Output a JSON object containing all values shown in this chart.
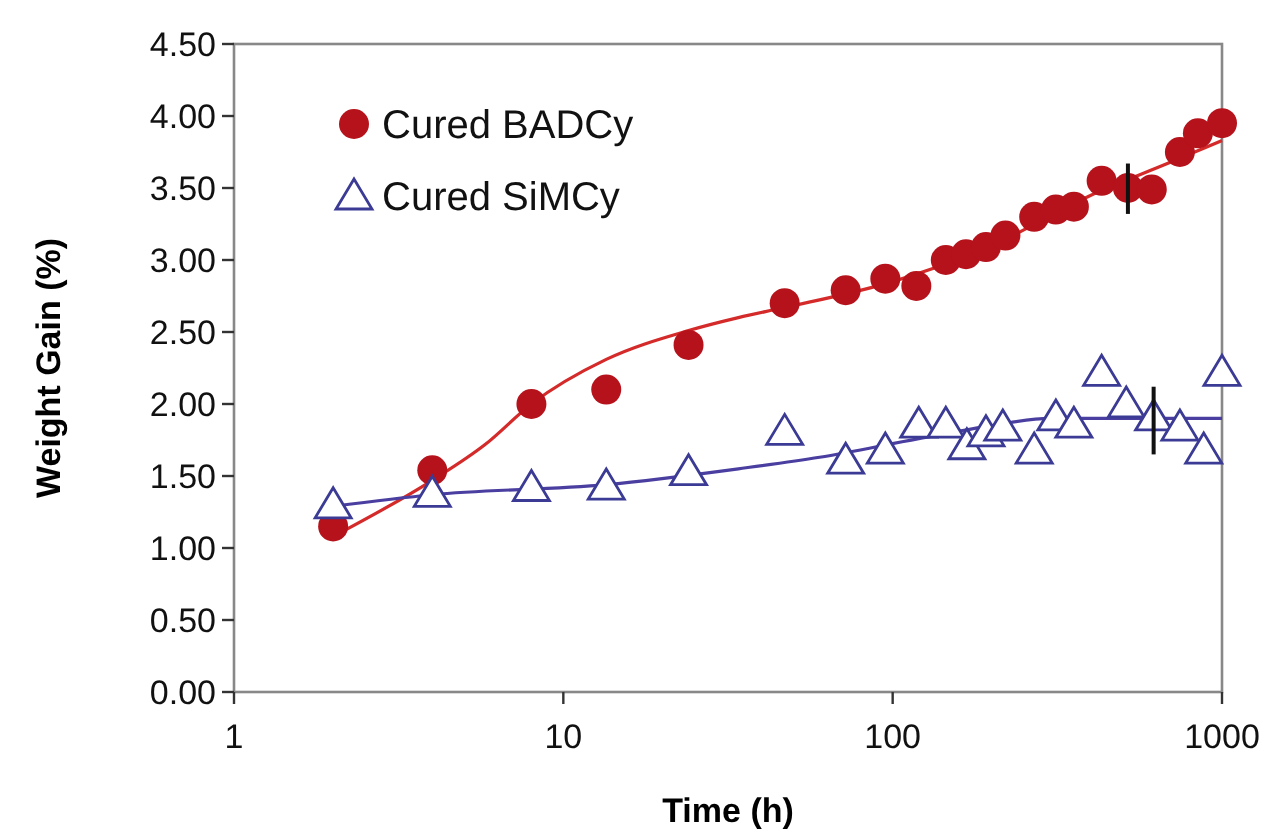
{
  "chart_data": {
    "type": "scatter",
    "xlabel": "Time (h)",
    "ylabel": "Weight Gain (%)",
    "log": "x",
    "xlim": [
      1,
      1000
    ],
    "xticks": [
      1,
      10,
      100,
      1000
    ],
    "ylim": [
      0,
      4.5
    ],
    "yticks": [
      {
        "value": 0,
        "label": "0.00"
      },
      {
        "value": 0.5,
        "label": "0.50"
      },
      {
        "value": 1,
        "label": "1.00"
      },
      {
        "value": 1.5,
        "label": "1.50"
      },
      {
        "value": 2,
        "label": "2.00"
      },
      {
        "value": 2.5,
        "label": "2.50"
      },
      {
        "value": 3,
        "label": "3.00"
      },
      {
        "value": 3.5,
        "label": "3.50"
      },
      {
        "value": 4,
        "label": "4.00"
      },
      {
        "value": 4.5,
        "label": "4.50"
      }
    ],
    "grid": false,
    "legend": "top left",
    "series": [
      {
        "name": "Cured BADCy",
        "marker": "circle",
        "color": "#b5121b",
        "x": [
          2,
          4,
          8,
          13.5,
          24,
          47,
          72,
          95,
          118,
          145,
          167,
          192,
          220,
          269,
          313,
          355,
          431,
          518,
          612,
          745,
          845,
          1000
        ],
        "values": [
          1.15,
          1.54,
          2.0,
          2.1,
          2.41,
          2.7,
          2.79,
          2.87,
          2.82,
          3.0,
          3.04,
          3.09,
          3.17,
          3.3,
          3.35,
          3.37,
          3.55,
          3.5,
          3.49,
          3.75,
          3.88,
          3.95
        ],
        "errors": [
          null,
          null,
          null,
          null,
          null,
          null,
          null,
          null,
          null,
          null,
          null,
          null,
          null,
          null,
          null,
          null,
          null,
          [
            3.32,
            3.67
          ],
          null,
          null,
          null,
          null
        ]
      },
      {
        "name": "Cured SiMCy",
        "marker": "triangle",
        "color": "#3b3b95",
        "x": [
          2,
          4,
          8,
          13.5,
          24,
          47,
          72,
          95,
          120,
          145,
          168,
          192,
          216,
          269,
          313,
          355,
          431,
          512,
          620,
          745,
          880,
          1000
        ],
        "values": [
          1.3,
          1.38,
          1.42,
          1.43,
          1.53,
          1.81,
          1.61,
          1.68,
          1.86,
          1.86,
          1.71,
          1.8,
          1.84,
          1.68,
          1.91,
          1.86,
          2.22,
          2.0,
          1.91,
          1.84,
          1.68,
          2.22
        ],
        "errors": [
          null,
          null,
          null,
          null,
          null,
          null,
          null,
          null,
          null,
          null,
          null,
          null,
          null,
          null,
          null,
          null,
          null,
          null,
          [
            1.65,
            2.12
          ],
          null,
          null,
          null
        ]
      },
      {
        "type": "line",
        "marker": "none",
        "color": "#d42a2a",
        "x": [
          2,
          4,
          5.8,
          8,
          13.5,
          24,
          34,
          47,
          100,
          200,
          400,
          700,
          1000
        ],
        "values": [
          1.08,
          1.47,
          1.72,
          2.0,
          2.31,
          2.51,
          2.6,
          2.67,
          2.85,
          3.1,
          3.45,
          3.68,
          3.83
        ]
      },
      {
        "type": "line",
        "marker": "none",
        "color": "#4a3fa0",
        "x": [
          2,
          4,
          13.5,
          34,
          60,
          120,
          200,
          300,
          1000
        ],
        "values": [
          1.29,
          1.37,
          1.44,
          1.55,
          1.63,
          1.76,
          1.85,
          1.9,
          1.9
        ]
      }
    ]
  }
}
